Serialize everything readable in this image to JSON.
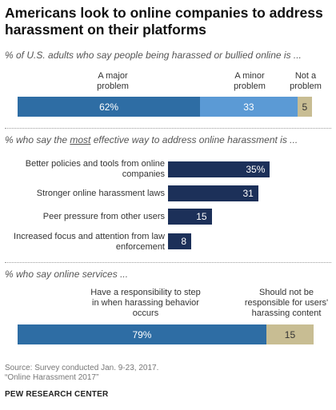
{
  "title": "Americans look to online companies to address harassment on their platforms",
  "sections": {
    "problem": {
      "subtitle": "% of U.S. adults who say people being harassed or bullied online is ...",
      "labels": [
        "A major problem",
        "A minor problem",
        "Not a problem"
      ],
      "value_labels": [
        "62%",
        "33",
        "5"
      ]
    },
    "effective": {
      "subtitle_pre": "% who say the ",
      "subtitle_em": "most",
      "subtitle_post": " effective way to address online harassment is ...",
      "labels": [
        "Better policies and tools from online companies",
        "Stronger online harassment laws",
        "Peer pressure from other users",
        "Increased focus and attention from law enforcement"
      ],
      "value_labels": [
        "35%",
        "31",
        "15",
        "8"
      ]
    },
    "services": {
      "subtitle": "% who say online services ...",
      "labels": [
        "Have a responsibility to step in when harassing behavior occurs",
        "Should not be responsible for users' harassing content"
      ],
      "value_labels": [
        "79%",
        "15"
      ]
    }
  },
  "source": {
    "line1": "Source: Survey conducted Jan. 9-23, 2017.",
    "line2": "“Online Harassment 2017”"
  },
  "org": "PEW RESEARCH CENTER",
  "colors": {
    "dark_blue": "#2e6da4",
    "light_blue": "#5b9ad5",
    "tan": "#c8bd93",
    "navy": "#1c3059"
  },
  "chart_data": [
    {
      "type": "bar",
      "stacked": true,
      "orientation": "horizontal",
      "title": "% of U.S. adults who say people being harassed or bullied online is ...",
      "categories": [
        "A major problem",
        "A minor problem",
        "Not a problem"
      ],
      "values": [
        62,
        33,
        5
      ]
    },
    {
      "type": "bar",
      "orientation": "horizontal",
      "title": "% who say the most effective way to address online harassment is ...",
      "categories": [
        "Better policies and tools from online companies",
        "Stronger online harassment laws",
        "Peer pressure from other users",
        "Increased focus and attention from law enforcement"
      ],
      "values": [
        35,
        31,
        15,
        8
      ],
      "xlim": [
        0,
        40
      ]
    },
    {
      "type": "bar",
      "stacked": true,
      "orientation": "horizontal",
      "title": "% who say online services ...",
      "categories": [
        "Have a responsibility to step in when harassing behavior occurs",
        "Should not be responsible for users' harassing content"
      ],
      "values": [
        79,
        15
      ]
    }
  ]
}
